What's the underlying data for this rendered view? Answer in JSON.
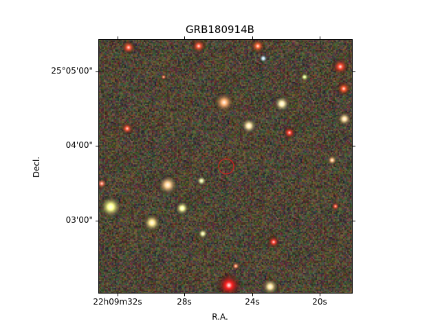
{
  "figure": {
    "title": "GRB180914B",
    "xlabel": "R.A.",
    "ylabel": "Decl.",
    "x_ticks": [
      "22h09m32s",
      "28s",
      "24s",
      "20s"
    ],
    "y_ticks": [
      "25°05'00\"",
      "04'00\"",
      "03'00\""
    ],
    "marker_color": "#cc2222"
  }
}
